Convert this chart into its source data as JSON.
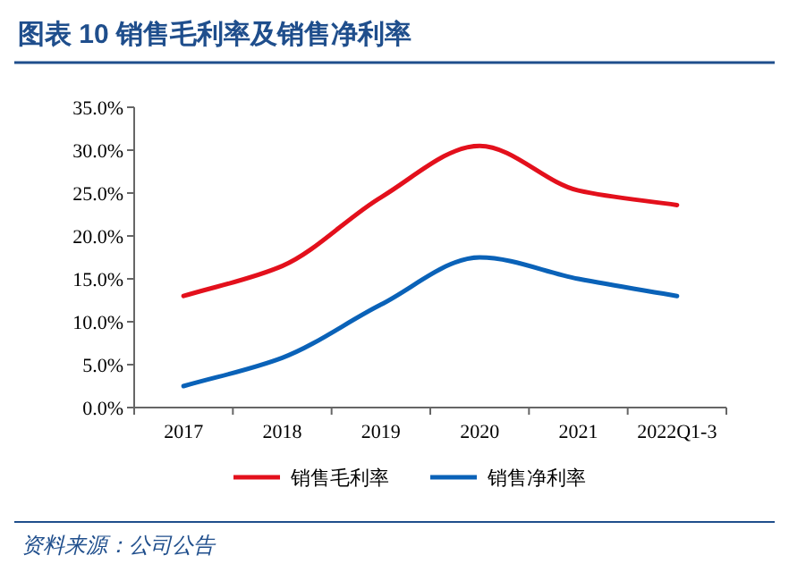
{
  "chart_data": {
    "type": "line",
    "title": "图表 10 销售毛利率及销售净利率",
    "categories": [
      "2017",
      "2018",
      "2019",
      "2020",
      "2021",
      "2022Q1-3"
    ],
    "series": [
      {
        "name": "销售毛利率",
        "color": "#e3101c",
        "values": [
          13.0,
          16.5,
          24.5,
          30.5,
          25.3,
          23.6
        ]
      },
      {
        "name": "销售净利率",
        "color": "#0a62b8",
        "values": [
          2.5,
          5.8,
          12.0,
          17.5,
          15.0,
          13.0
        ]
      }
    ],
    "ylim": [
      0,
      35
    ],
    "yticks": [
      {
        "value": 0,
        "label": "0.0%"
      },
      {
        "value": 5,
        "label": "5.0%"
      },
      {
        "value": 10,
        "label": "10.0%"
      },
      {
        "value": 15,
        "label": "15.0%"
      },
      {
        "value": 20,
        "label": "20.0%"
      },
      {
        "value": 25,
        "label": "25.0%"
      },
      {
        "value": 30,
        "label": "30.0%"
      },
      {
        "value": 35,
        "label": "35.0%"
      }
    ],
    "grid": false,
    "legend": "bottom",
    "marker": "none",
    "line_style": "solid",
    "annotations": [
      "资料来源：公司公告"
    ]
  }
}
